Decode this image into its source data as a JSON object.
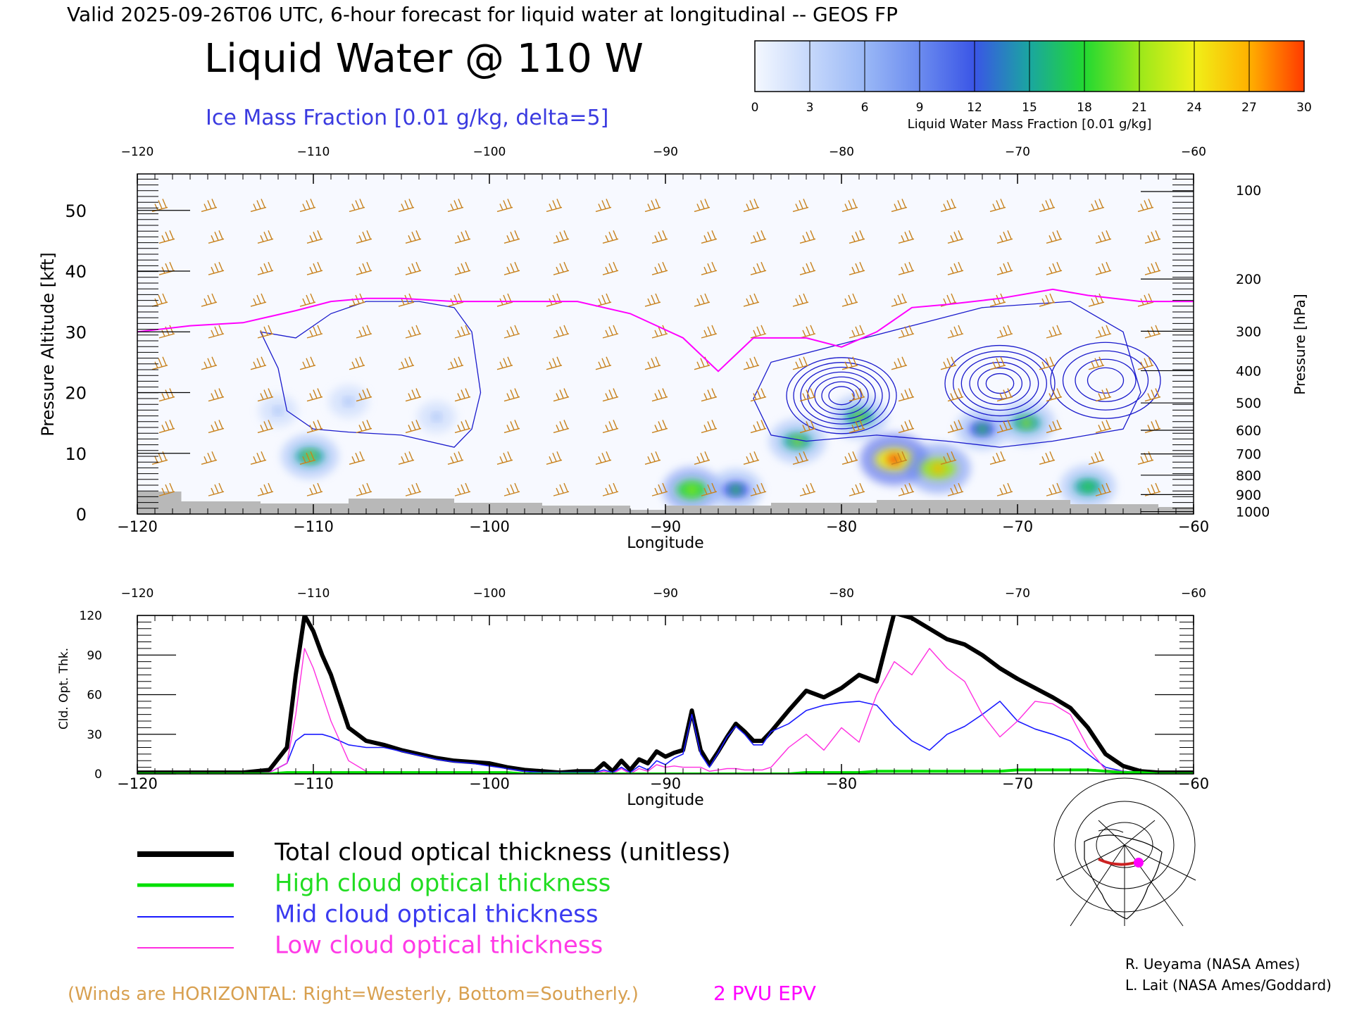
{
  "header": {
    "valid_line": "Valid 2025-09-26T06 UTC, 6-hour forecast for liquid water at longitudinal -- GEOS FP",
    "title": "Liquid Water @ 110 W",
    "subtitle": "Ice Mass Fraction [0.01 g/kg, delta=5]"
  },
  "colorbar": {
    "label": "Liquid Water Mass Fraction [0.01 g/kg]",
    "ticks": [
      "0",
      "3",
      "6",
      "9",
      "12",
      "15",
      "18",
      "21",
      "24",
      "27",
      "30"
    ],
    "colors": [
      "#f4f8ff",
      "#c6d8fb",
      "#9ab8f6",
      "#6b8bef",
      "#3a55e6",
      "#1aa6a0",
      "#22d832",
      "#9be81a",
      "#f0f018",
      "#ffb000",
      "#ff3a00"
    ]
  },
  "colors": {
    "total": "#000000",
    "high": "#00e000",
    "mid": "#1a1aff",
    "low": "#ff2ee0",
    "wind": "#c8821e",
    "epv": "#ff00ff",
    "ice": "#1a1acc",
    "topography": "#b8b8b8"
  },
  "chart_data": [
    {
      "type": "heatmap",
      "title": "Liquid Water @ 110 W",
      "xlabel": "Longitude",
      "ylabel": "Pressure Altitude [kft]",
      "ylabel_right": "Pressure [hPa]",
      "xlim": [
        -120,
        -60
      ],
      "ylim": [
        0,
        56
      ],
      "x_ticks": [
        -120,
        -110,
        -100,
        -90,
        -80,
        -70,
        -60
      ],
      "y_ticks": [
        0,
        10,
        20,
        30,
        40,
        50
      ],
      "pressure_ticks": [
        "100",
        "200",
        "300",
        "400",
        "500",
        "600",
        "700",
        "800",
        "900",
        "1000"
      ],
      "liquid_water_cells": [
        {
          "lon": -110.2,
          "alt": 9.5,
          "value": 16
        },
        {
          "lon": -112.0,
          "alt": 17.0,
          "value": 2
        },
        {
          "lon": -108.0,
          "alt": 18.5,
          "value": 3
        },
        {
          "lon": -103.0,
          "alt": 16.0,
          "value": 2
        },
        {
          "lon": -88.5,
          "alt": 4.0,
          "value": 17
        },
        {
          "lon": -86.0,
          "alt": 4.0,
          "value": 13
        },
        {
          "lon": -82.5,
          "alt": 12.0,
          "value": 16
        },
        {
          "lon": -79.0,
          "alt": 16.0,
          "value": 16
        },
        {
          "lon": -77.0,
          "alt": 9.0,
          "value": 25
        },
        {
          "lon": -74.5,
          "alt": 7.5,
          "value": 22
        },
        {
          "lon": -72.0,
          "alt": 14.0,
          "value": 13
        },
        {
          "lon": -69.5,
          "alt": 15.0,
          "value": 16
        },
        {
          "lon": -66.0,
          "alt": 4.5,
          "value": 15
        }
      ],
      "ice_contour_levels": [
        5,
        10,
        15,
        20,
        25,
        30,
        35
      ],
      "ice_maxima": [
        {
          "lon": -80.0,
          "alt": 19.5,
          "value": 35
        },
        {
          "lon": -71.0,
          "alt": 21.5,
          "value": 30
        },
        {
          "lon": -65.0,
          "alt": 22.0,
          "value": 20
        }
      ],
      "epv_2pvu_alt": {
        "lon": [
          -120,
          -117,
          -114,
          -111,
          -109,
          -107,
          -105,
          -102,
          -98,
          -95,
          -92,
          -89,
          -87,
          -85,
          -82,
          -80,
          -78,
          -76,
          -74,
          -71,
          -68,
          -66,
          -63,
          -60
        ],
        "alt": [
          30.0,
          31.0,
          31.5,
          33.5,
          35.0,
          35.5,
          35.5,
          35.0,
          35.0,
          35.0,
          33.0,
          29.0,
          23.5,
          29.0,
          29.0,
          27.5,
          30.0,
          34.0,
          34.5,
          35.5,
          37.0,
          36.0,
          35.0,
          35.0
        ]
      },
      "wind_barbs": "HORIZONTAL: Right=Westerly, Bottom=Southerly.",
      "grid": false
    },
    {
      "type": "line",
      "xlabel": "Longitude",
      "ylabel": "Cld. Opt. Thk.",
      "xlim": [
        -120,
        -60
      ],
      "ylim": [
        0,
        120
      ],
      "x_ticks": [
        -120,
        -110,
        -100,
        -90,
        -80,
        -70,
        -60
      ],
      "y_ticks": [
        0,
        30,
        60,
        90,
        120
      ],
      "x": [
        -120,
        -118,
        -116,
        -114,
        -112.5,
        -111.5,
        -111,
        -110.5,
        -110,
        -109.5,
        -109,
        -108.5,
        -108,
        -107,
        -106,
        -105,
        -104,
        -103,
        -102,
        -101,
        -100,
        -99,
        -98,
        -97,
        -96,
        -95,
        -94,
        -93.5,
        -93,
        -92.5,
        -92,
        -91.5,
        -91,
        -90.5,
        -90,
        -89.5,
        -89,
        -88.5,
        -88,
        -87.5,
        -87,
        -86.5,
        -86,
        -85.5,
        -85,
        -84.5,
        -84,
        -83,
        -82,
        -81,
        -80,
        -79,
        -78,
        -77,
        -76,
        -75,
        -74,
        -73,
        -72,
        -71,
        -70,
        -69,
        -68,
        -67,
        -66,
        -65,
        -64,
        -63,
        -62,
        -61,
        -60
      ],
      "series": [
        {
          "name": "Total cloud optical thickness (unitless)",
          "values": [
            1,
            1,
            1,
            1,
            3,
            20,
            75,
            120,
            108,
            90,
            75,
            55,
            35,
            25,
            22,
            18,
            15,
            12,
            10,
            9,
            8,
            5,
            3,
            2,
            1,
            2,
            2,
            8,
            2,
            10,
            3,
            11,
            8,
            17,
            13,
            16,
            18,
            48,
            18,
            7,
            17,
            28,
            38,
            32,
            25,
            25,
            32,
            48,
            63,
            58,
            65,
            75,
            70,
            122,
            118,
            110,
            102,
            98,
            90,
            80,
            72,
            65,
            58,
            50,
            35,
            15,
            6,
            2,
            1,
            1,
            1
          ]
        },
        {
          "name": "High cloud optical thickness",
          "values": [
            0,
            0,
            0,
            0,
            0,
            1,
            1,
            1,
            1,
            1,
            1,
            1,
            1,
            1,
            1,
            1,
            1,
            1,
            1,
            1,
            1,
            1,
            0,
            0,
            0,
            0,
            0,
            0,
            0,
            0,
            0,
            0,
            0,
            0,
            0,
            0,
            0,
            0,
            0,
            0,
            0,
            0,
            0,
            0,
            0,
            0,
            0,
            0,
            1,
            1,
            1,
            1,
            2,
            2,
            2,
            2,
            2,
            2,
            2,
            2,
            3,
            3,
            3,
            3,
            3,
            2,
            1,
            1,
            0,
            0,
            0
          ]
        },
        {
          "name": "Mid cloud optical thickness",
          "values": [
            0,
            0,
            0,
            0,
            1,
            8,
            25,
            30,
            30,
            30,
            28,
            25,
            22,
            20,
            20,
            17,
            14,
            11,
            9,
            8,
            6,
            4,
            2,
            1,
            1,
            1,
            1,
            3,
            1,
            5,
            1,
            6,
            3,
            10,
            7,
            12,
            15,
            45,
            15,
            5,
            16,
            28,
            36,
            30,
            22,
            22,
            32,
            38,
            48,
            52,
            54,
            55,
            52,
            37,
            25,
            18,
            30,
            36,
            45,
            55,
            40,
            34,
            30,
            25,
            15,
            5,
            2,
            1,
            0,
            0,
            0
          ]
        },
        {
          "name": "Low cloud optical thickness",
          "values": [
            0,
            0,
            0,
            0,
            1,
            8,
            45,
            95,
            80,
            60,
            40,
            25,
            10,
            2,
            0,
            0,
            0,
            0,
            0,
            0,
            0,
            0,
            0,
            0,
            0,
            0,
            0,
            2,
            0,
            4,
            0,
            4,
            2,
            7,
            5,
            6,
            5,
            5,
            5,
            2,
            3,
            4,
            4,
            3,
            3,
            3,
            5,
            20,
            30,
            18,
            35,
            24,
            60,
            85,
            75,
            95,
            80,
            70,
            45,
            28,
            40,
            55,
            53,
            45,
            20,
            3,
            2,
            0,
            0,
            0,
            0
          ]
        }
      ]
    }
  ],
  "legend": {
    "total": "Total cloud optical thickness (unitless)",
    "high": "High cloud optical thickness",
    "mid": "Mid cloud optical thickness",
    "low": "Low cloud optical thickness"
  },
  "footer": {
    "winds_note": "(Winds are HORIZONTAL: Right=Westerly, Bottom=Southerly.)",
    "epv_label": "2 PVU EPV",
    "credit1": "R. Ueyama (NASA Ames)",
    "credit2": "L. Lait (NASA Ames/Goddard)"
  }
}
